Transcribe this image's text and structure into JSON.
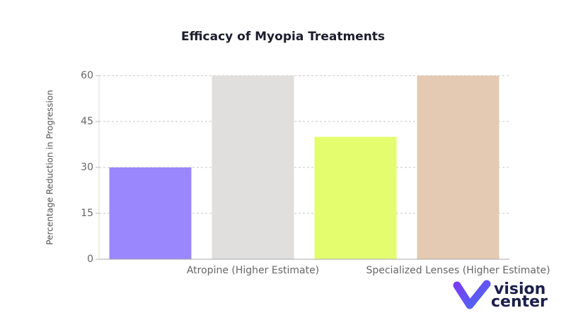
{
  "chart_data": {
    "type": "bar",
    "title": "Efficacy of Myopia Treatments",
    "y_label": "Percentage Reduction in Progression",
    "categories": [
      null,
      "Atropine (Higher Estimate)",
      null,
      "Specialized Lenses (Higher Estimate)"
    ],
    "values": [
      30,
      60,
      40,
      60
    ],
    "colors": [
      "#9b87fd",
      "#e0dfde",
      "#e3fd6f",
      "#e4cab2"
    ],
    "ylim": [
      0,
      60
    ],
    "yticks": [
      0,
      15,
      30,
      45,
      60
    ],
    "grid": true
  },
  "logo": {
    "line1": "vision",
    "line2": "center"
  }
}
